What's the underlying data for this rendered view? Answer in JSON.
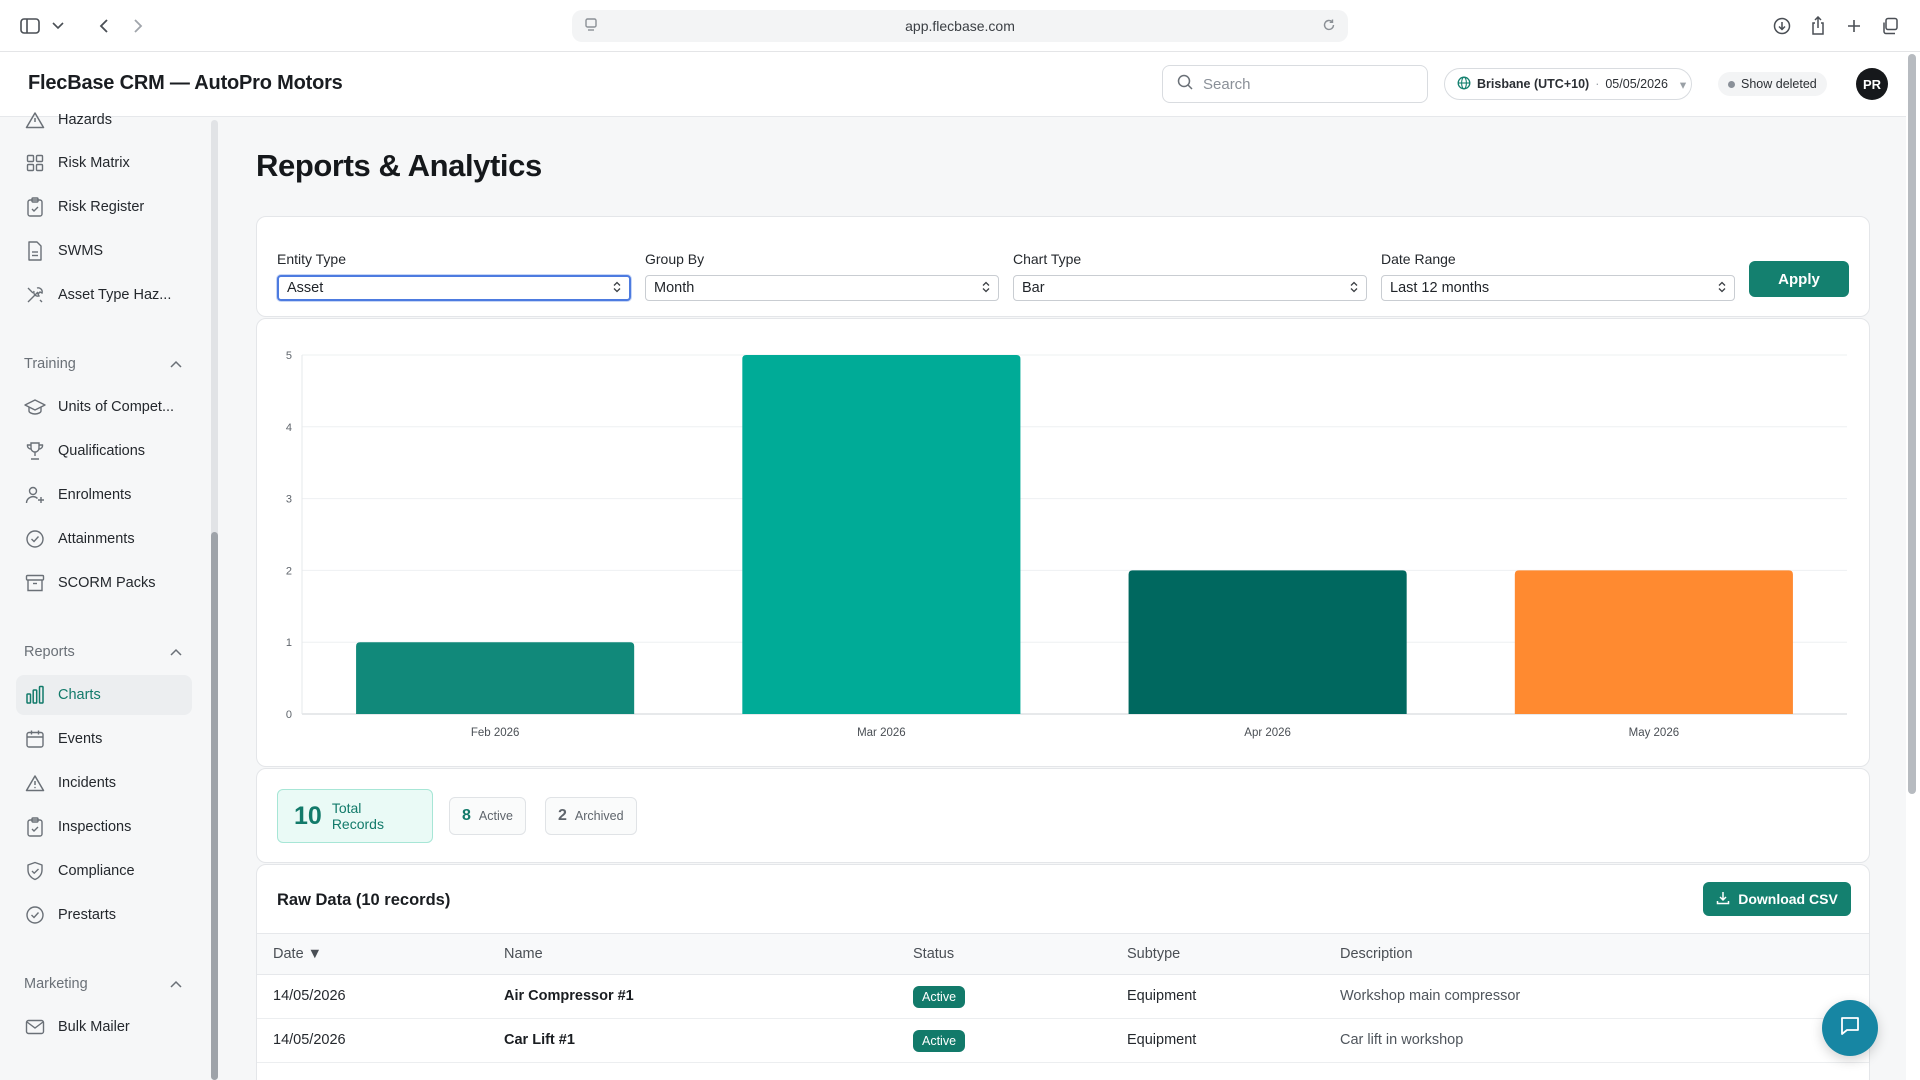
{
  "browser": {
    "url": "app.flecbase.com"
  },
  "header": {
    "app_title": "FlecBase CRM — AutoPro Motors",
    "search_placeholder": "Search",
    "timezone": "Brisbane (UTC+10)",
    "date": "05/05/2026",
    "show_deleted": "Show deleted",
    "avatar_initials": "PR"
  },
  "sidebar": {
    "top_items": [
      {
        "label": "Hazards",
        "icon": "warning-triangle-icon"
      },
      {
        "label": "Risk Matrix",
        "icon": "grid-icon"
      },
      {
        "label": "Risk Register",
        "icon": "clipboard-icon"
      },
      {
        "label": "SWMS",
        "icon": "document-icon"
      },
      {
        "label": "Asset Type Haz...",
        "icon": "tools-icon"
      }
    ],
    "training": {
      "title": "Training",
      "items": [
        {
          "label": "Units of Compet...",
          "icon": "graduation-cap-icon"
        },
        {
          "label": "Qualifications",
          "icon": "trophy-icon"
        },
        {
          "label": "Enrolments",
          "icon": "user-plus-icon"
        },
        {
          "label": "Attainments",
          "icon": "check-circle-icon"
        },
        {
          "label": "SCORM Packs",
          "icon": "archive-icon"
        }
      ]
    },
    "reports": {
      "title": "Reports",
      "items": [
        {
          "label": "Charts",
          "icon": "bar-chart-icon"
        },
        {
          "label": "Events",
          "icon": "calendar-icon"
        },
        {
          "label": "Incidents",
          "icon": "warning-triangle-icon"
        },
        {
          "label": "Inspections",
          "icon": "clipboard-check-icon"
        },
        {
          "label": "Compliance",
          "icon": "shield-check-icon"
        },
        {
          "label": "Prestarts",
          "icon": "check-circle-icon"
        }
      ]
    },
    "marketing": {
      "title": "Marketing",
      "items": [
        {
          "label": "Bulk Mailer",
          "icon": "mail-icon"
        }
      ]
    }
  },
  "main": {
    "title": "Reports & Analytics",
    "filters": {
      "entity_type": {
        "label": "Entity Type",
        "value": "Asset"
      },
      "group_by": {
        "label": "Group By",
        "value": "Month"
      },
      "chart_type": {
        "label": "Chart Type",
        "value": "Bar"
      },
      "date_range": {
        "label": "Date Range",
        "value": "Last 12 months"
      },
      "apply_label": "Apply"
    },
    "stats": {
      "total": {
        "value": "10",
        "label": "Total Records"
      },
      "active": {
        "value": "8",
        "label": "Active"
      },
      "archived": {
        "value": "2",
        "label": "Archived"
      }
    },
    "raw_data": {
      "title": "Raw Data (10 records)",
      "download_label": "Download CSV",
      "columns": [
        "Date ▼",
        "Name",
        "Status",
        "Subtype",
        "Description"
      ],
      "rows": [
        {
          "date": "14/05/2026",
          "name": "Air Compressor #1",
          "status": "Active",
          "subtype": "Equipment",
          "description": "Workshop main compressor"
        },
        {
          "date": "14/05/2026",
          "name": "Car Lift #1",
          "status": "Active",
          "subtype": "Equipment",
          "description": "Car lift in workshop"
        }
      ]
    }
  },
  "chart_data": {
    "type": "bar",
    "categories": [
      "Feb 2026",
      "Mar 2026",
      "Apr 2026",
      "May 2026"
    ],
    "values": [
      1,
      5,
      2,
      2
    ],
    "colors": [
      "#11897a",
      "#00ab97",
      "#00685f",
      "#ff8a30"
    ],
    "ylim": [
      0,
      5
    ],
    "yticks": [
      0,
      1,
      2,
      3,
      4,
      5
    ],
    "grid": true,
    "title": "",
    "xlabel": "",
    "ylabel": ""
  }
}
